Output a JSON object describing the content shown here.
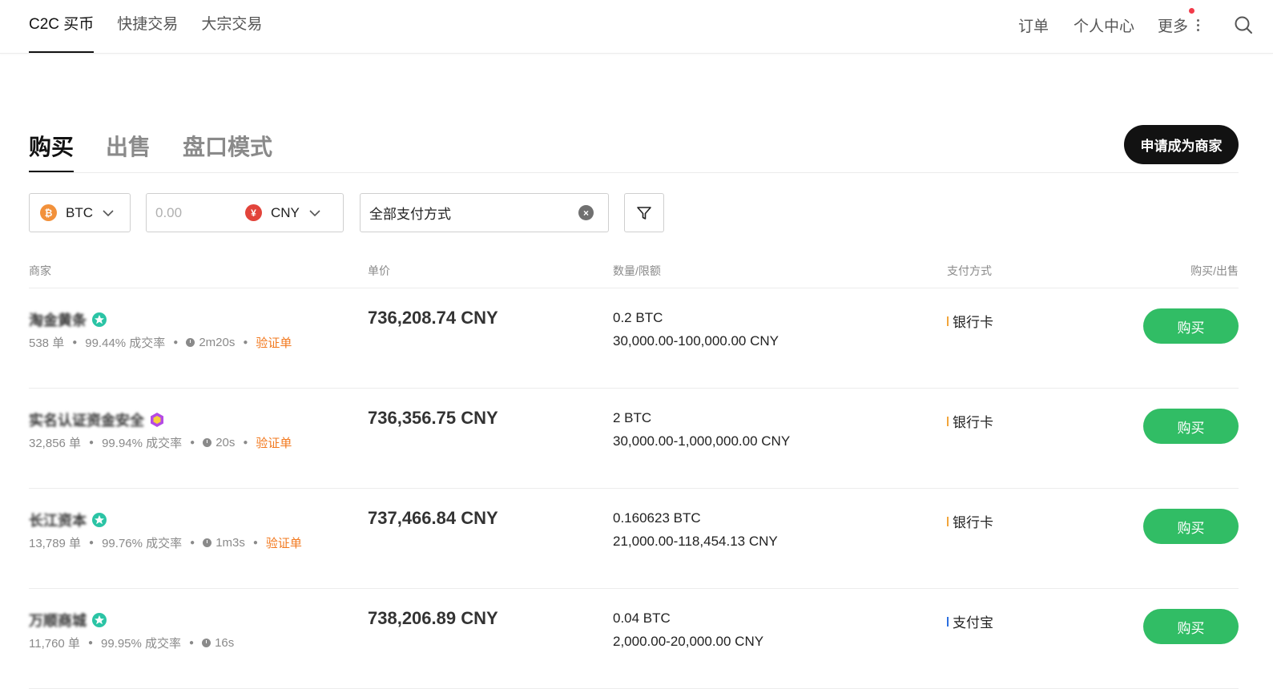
{
  "topnav": {
    "left": [
      "C2C 买币",
      "快捷交易",
      "大宗交易"
    ],
    "right": {
      "orders": "订单",
      "profile": "个人中心",
      "more": "更多"
    }
  },
  "tabs": [
    "购买",
    "出售",
    "盘口模式"
  ],
  "merchant_button": "申请成为商家",
  "filters": {
    "crypto": "BTC",
    "amount_placeholder": "0.00",
    "fiat": "CNY",
    "fiat_symbol": "¥",
    "payment": "全部支付方式"
  },
  "table": {
    "headers": {
      "merchant": "商家",
      "price": "单价",
      "amount": "数量/限额",
      "payment": "支付方式",
      "action": "购买/出售"
    },
    "rows": [
      {
        "name": "淘金黄条",
        "badge": "teal",
        "orders": "538 单",
        "rate": "99.44% 成交率",
        "time": "2m20s",
        "verified": "验证单",
        "price": "736,208.74 CNY",
        "qty": "0.2 BTC",
        "limit": "30,000.00-100,000.00 CNY",
        "payment": "银行卡",
        "payment_color": "#f2a53b",
        "action": "购买"
      },
      {
        "name": "实名认证资金安全",
        "badge": "purple",
        "orders": "32,856 单",
        "rate": "99.94% 成交率",
        "time": "20s",
        "verified": "验证单",
        "price": "736,356.75 CNY",
        "qty": "2 BTC",
        "limit": "30,000.00-1,000,000.00 CNY",
        "payment": "银行卡",
        "payment_color": "#f2a53b",
        "action": "购买"
      },
      {
        "name": "长江资本",
        "badge": "teal",
        "orders": "13,789 单",
        "rate": "99.76% 成交率",
        "time": "1m3s",
        "verified": "验证单",
        "price": "737,466.84 CNY",
        "qty": "0.160623 BTC",
        "limit": "21,000.00-118,454.13 CNY",
        "payment": "银行卡",
        "payment_color": "#f2a53b",
        "action": "购买"
      },
      {
        "name": "万顺商城",
        "badge": "teal",
        "orders": "11,760 单",
        "rate": "99.95% 成交率",
        "time": "16s",
        "verified": "",
        "price": "738,206.89 CNY",
        "qty": "0.04 BTC",
        "limit": "2,000.00-20,000.00 CNY",
        "payment": "支付宝",
        "payment_color": "#2b6fe0",
        "action": "购买"
      }
    ]
  }
}
